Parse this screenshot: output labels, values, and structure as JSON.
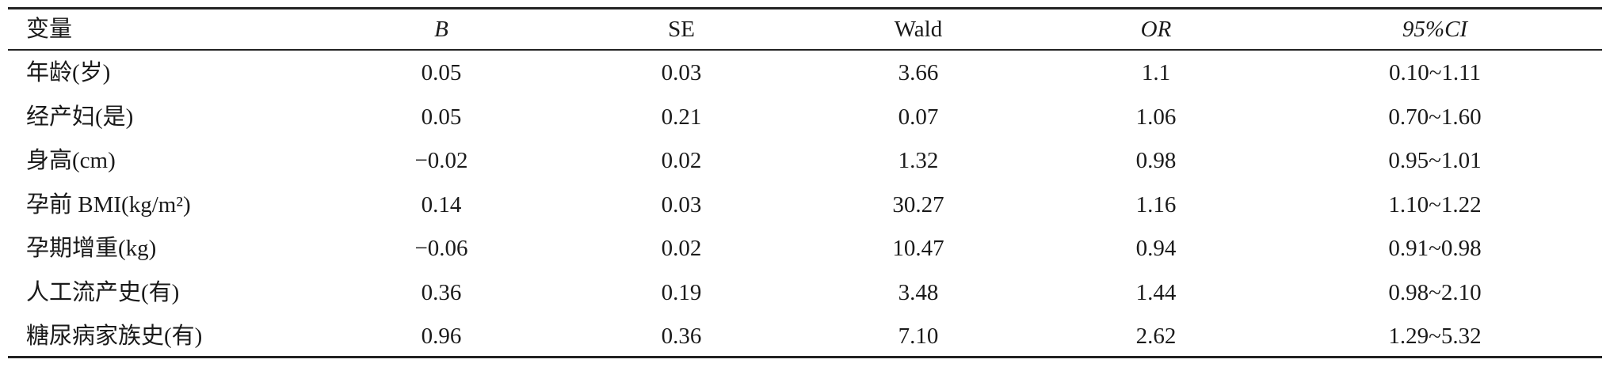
{
  "table": {
    "header": [
      "变量",
      "B",
      "SE",
      "Wald",
      "OR",
      "95%CI"
    ],
    "rows": [
      [
        "年龄(岁)",
        "0.05",
        "0.03",
        "3.66",
        "1.1",
        "0.10~1.11"
      ],
      [
        "经产妇(是)",
        "0.05",
        "0.21",
        "0.07",
        "1.06",
        "0.70~1.60"
      ],
      [
        "身高(cm)",
        "−0.02",
        "0.02",
        "1.32",
        "0.98",
        "0.95~1.01"
      ],
      [
        "孕前 BMI(kg/m²)",
        "0.14",
        "0.03",
        "30.27",
        "1.16",
        "1.10~1.22"
      ],
      [
        "孕期增重(kg)",
        "−0.06",
        "0.02",
        "10.47",
        "0.94",
        "0.91~0.98"
      ],
      [
        "人工流产史(有)",
        "0.36",
        "0.19",
        "3.48",
        "1.44",
        "0.98~2.10"
      ],
      [
        "糖尿病家族史(有)",
        "0.96",
        "0.36",
        "7.10",
        "2.62",
        "1.29~5.32"
      ]
    ]
  }
}
